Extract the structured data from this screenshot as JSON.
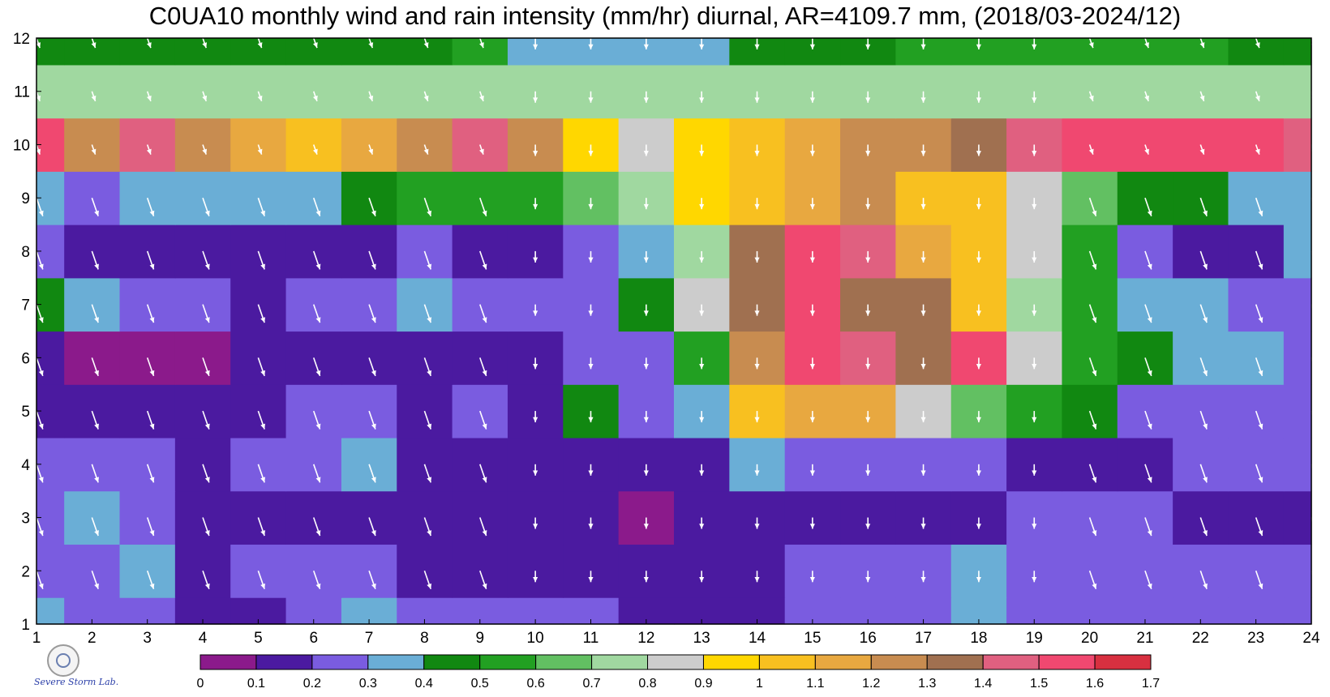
{
  "chart_data": {
    "type": "heatmap",
    "title": "C0UA10 monthly wind and rain intensity (mm/hr) diurnal, AR=4109.7 mm, (2018/03-2024/12)",
    "x_ticks": [
      "1",
      "2",
      "3",
      "4",
      "5",
      "6",
      "7",
      "8",
      "9",
      "10",
      "11",
      "12",
      "13",
      "14",
      "15",
      "16",
      "17",
      "18",
      "19",
      "20",
      "21",
      "22",
      "23",
      "24"
    ],
    "y_ticks": [
      "1",
      "2",
      "3",
      "4",
      "5",
      "6",
      "7",
      "8",
      "9",
      "10",
      "11",
      "12"
    ],
    "xlim": [
      1,
      24
    ],
    "ylim": [
      1,
      12
    ],
    "colorbar": {
      "ticks": [
        "0",
        "0.1",
        "0.2",
        "0.3",
        "0.4",
        "0.5",
        "0.6",
        "0.7",
        "0.8",
        "0.9",
        "1",
        "1.1",
        "1.2",
        "1.3",
        "1.4",
        "1.5",
        "1.6",
        "1.7"
      ],
      "colors": [
        "#8b1a8b",
        "#4b1aa0",
        "#7a5ce0",
        "#6aaed6",
        "#118811",
        "#22a022",
        "#62c062",
        "#a0d8a0",
        "#cccccc",
        "#ffd700",
        "#f8c020",
        "#e8a840",
        "#c88c50",
        "#a07050",
        "#e06080",
        "#f04870",
        "#d83040"
      ]
    },
    "rows": [
      [
        0.35,
        0.3,
        0.25,
        0.15,
        0.15,
        0.3,
        0.35,
        0.25,
        0.25,
        0.2,
        0.2,
        0.15,
        0.15,
        0.15,
        0.25,
        0.25,
        0.25,
        0.35,
        0.25,
        0.25,
        0.25,
        0.25,
        0.25,
        0.25
      ],
      [
        0.25,
        0.25,
        0.35,
        0.15,
        0.25,
        0.25,
        0.25,
        0.15,
        0.15,
        0.15,
        0.15,
        0.15,
        0.15,
        0.15,
        0.25,
        0.25,
        0.25,
        0.35,
        0.25,
        0.25,
        0.25,
        0.25,
        0.25,
        0.25
      ],
      [
        0.25,
        0.35,
        0.25,
        0.15,
        0.15,
        0.15,
        0.15,
        0.15,
        0.15,
        0.15,
        0.15,
        0.05,
        0.15,
        0.15,
        0.15,
        0.15,
        0.15,
        0.15,
        0.25,
        0.25,
        0.25,
        0.15,
        0.15,
        0.15
      ],
      [
        0.25,
        0.25,
        0.25,
        0.15,
        0.25,
        0.25,
        0.35,
        0.15,
        0.15,
        0.15,
        0.15,
        0.15,
        0.15,
        0.35,
        0.25,
        0.25,
        0.25,
        0.25,
        0.15,
        0.15,
        0.15,
        0.25,
        0.25,
        0.25
      ],
      [
        0.15,
        0.15,
        0.15,
        0.15,
        0.15,
        0.25,
        0.25,
        0.15,
        0.25,
        0.15,
        0.45,
        0.25,
        0.35,
        1.05,
        1.15,
        1.15,
        0.85,
        0.65,
        0.55,
        0.45,
        0.25,
        0.25,
        0.25,
        0.25
      ],
      [
        0.15,
        0.05,
        0.05,
        0.05,
        0.15,
        0.15,
        0.15,
        0.15,
        0.15,
        0.15,
        0.25,
        0.25,
        0.55,
        1.25,
        1.55,
        1.45,
        1.35,
        1.55,
        0.85,
        0.55,
        0.45,
        0.35,
        0.35,
        0.25
      ],
      [
        0.45,
        0.35,
        0.25,
        0.25,
        0.15,
        0.25,
        0.25,
        0.35,
        0.25,
        0.25,
        0.25,
        0.45,
        0.85,
        1.35,
        1.55,
        1.35,
        1.35,
        1.05,
        0.75,
        0.55,
        0.35,
        0.35,
        0.25,
        0.25
      ],
      [
        0.25,
        0.15,
        0.15,
        0.15,
        0.15,
        0.15,
        0.15,
        0.25,
        0.15,
        0.15,
        0.25,
        0.35,
        0.75,
        1.35,
        1.55,
        1.45,
        1.15,
        1.05,
        0.85,
        0.55,
        0.25,
        0.15,
        0.15,
        0.35
      ],
      [
        0.35,
        0.25,
        0.35,
        0.35,
        0.35,
        0.35,
        0.45,
        0.55,
        0.55,
        0.55,
        0.65,
        0.75,
        0.95,
        1.05,
        1.15,
        1.25,
        1.05,
        1.05,
        0.85,
        0.65,
        0.45,
        0.45,
        0.35,
        0.35
      ],
      [
        1.55,
        1.25,
        1.45,
        1.25,
        1.15,
        1.05,
        1.15,
        1.25,
        1.45,
        1.25,
        0.95,
        0.85,
        0.95,
        1.05,
        1.15,
        1.25,
        1.25,
        1.35,
        1.45,
        1.55,
        1.55,
        1.55,
        1.55,
        1.45
      ],
      [
        0.75,
        0.75,
        0.75,
        0.75,
        0.75,
        0.75,
        0.75,
        0.75,
        0.75,
        0.75,
        0.75,
        0.75,
        0.75,
        0.75,
        0.75,
        0.75,
        0.75,
        0.75,
        0.75,
        0.75,
        0.75,
        0.75,
        0.75,
        0.75
      ],
      [
        0.45,
        0.45,
        0.45,
        0.45,
        0.45,
        0.45,
        0.45,
        0.45,
        0.55,
        0.35,
        0.35,
        0.35,
        0.35,
        0.45,
        0.45,
        0.45,
        0.55,
        0.55,
        0.55,
        0.55,
        0.55,
        0.55,
        0.45,
        0.45
      ]
    ]
  },
  "logo": {
    "text": "Severe Storm Lab."
  }
}
